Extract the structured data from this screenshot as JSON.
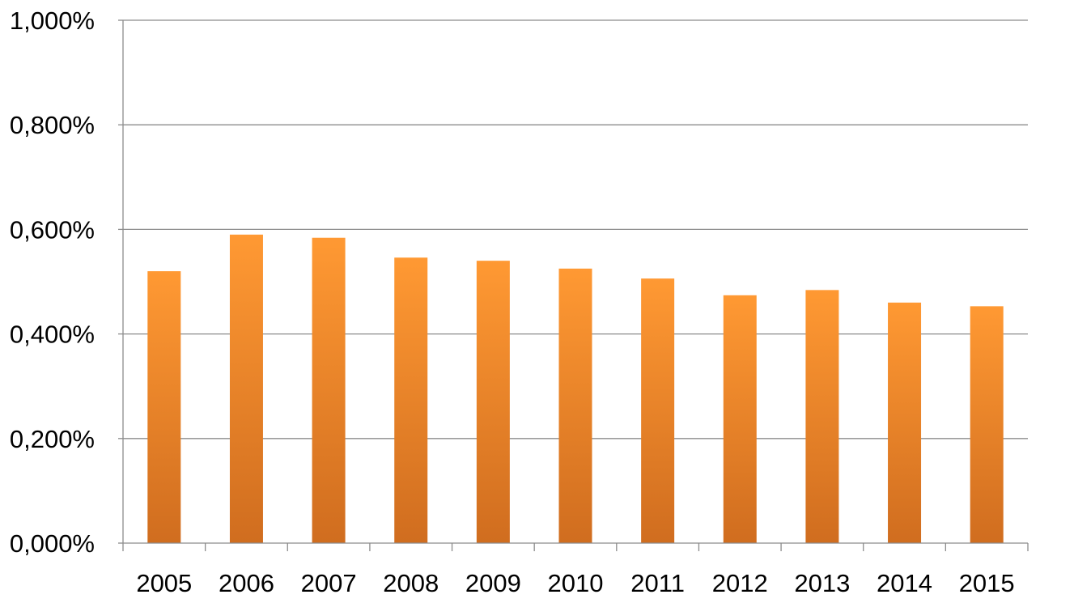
{
  "chart_data": {
    "type": "bar",
    "title": "",
    "xlabel": "",
    "ylabel": "",
    "categories": [
      "2005",
      "2006",
      "2007",
      "2008",
      "2009",
      "2010",
      "2011",
      "2012",
      "2013",
      "2014",
      "2015"
    ],
    "values": [
      0.52,
      0.59,
      0.584,
      0.546,
      0.54,
      0.525,
      0.506,
      0.474,
      0.484,
      0.46,
      0.453
    ],
    "ylim": [
      0,
      1.0
    ],
    "yticks": [
      0.0,
      0.2,
      0.4,
      0.6,
      0.8,
      1.0
    ],
    "ytick_labels": [
      "0,000%",
      "0,200%",
      "0,400%",
      "0,600%",
      "0,800%",
      "1,000%"
    ],
    "y_unit": "%",
    "grid": true,
    "legend": "none",
    "colors": {
      "bar_top": "#ff9933",
      "bar_bottom": "#d06d1f",
      "grid": "#8c8c8c",
      "text": "#000000"
    }
  }
}
